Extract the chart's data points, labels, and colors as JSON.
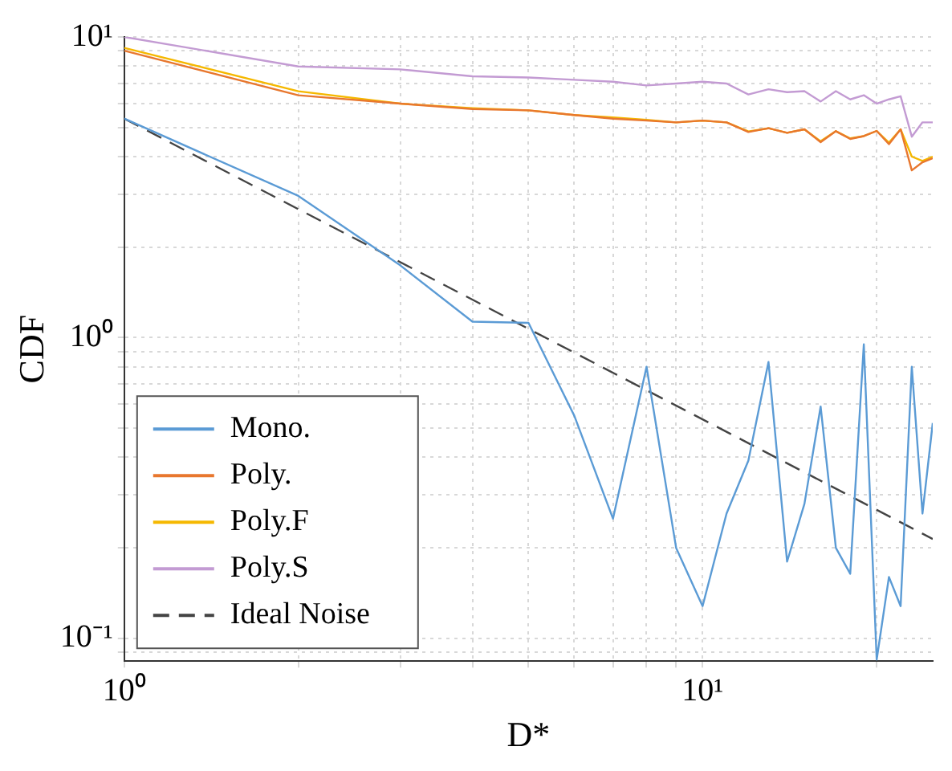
{
  "chart_data": {
    "type": "line",
    "xlabel": "D*",
    "ylabel": "CDF",
    "log": "xy",
    "grid": true,
    "legend": "bottom left",
    "marker": "none",
    "xlim": [
      1,
      25
    ],
    "ylim": [
      0.084,
      10
    ],
    "xticks": [
      {
        "value": 1,
        "label": "10⁰"
      },
      {
        "value": 2,
        "label": null
      },
      {
        "value": 3,
        "label": null
      },
      {
        "value": 4,
        "label": null
      },
      {
        "value": 5,
        "label": null
      },
      {
        "value": 6,
        "label": null
      },
      {
        "value": 7,
        "label": null
      },
      {
        "value": 8,
        "label": null
      },
      {
        "value": 9,
        "label": null
      },
      {
        "value": 10,
        "label": "10¹"
      },
      {
        "value": 20,
        "label": null
      }
    ],
    "yticks": [
      {
        "value": 0.09,
        "label": null
      },
      {
        "value": 0.1,
        "label": "10⁻¹"
      },
      {
        "value": 0.2,
        "label": null
      },
      {
        "value": 0.3,
        "label": null
      },
      {
        "value": 0.4,
        "label": null
      },
      {
        "value": 0.5,
        "label": null
      },
      {
        "value": 0.6,
        "label": null
      },
      {
        "value": 0.7,
        "label": null
      },
      {
        "value": 0.8,
        "label": null
      },
      {
        "value": 0.9,
        "label": null
      },
      {
        "value": 1,
        "label": "10⁰"
      },
      {
        "value": 2,
        "label": null
      },
      {
        "value": 3,
        "label": null
      },
      {
        "value": 4,
        "label": null
      },
      {
        "value": 5,
        "label": null
      },
      {
        "value": 6,
        "label": null
      },
      {
        "value": 7,
        "label": null
      },
      {
        "value": 8,
        "label": null
      },
      {
        "value": 9,
        "label": null
      },
      {
        "value": 10,
        "label": "10¹"
      }
    ],
    "x": [
      1,
      2,
      3,
      4,
      5,
      6,
      7,
      8,
      9,
      10,
      11,
      12,
      13,
      14,
      15,
      16,
      17,
      18,
      19,
      20,
      21,
      22,
      23,
      24,
      25
    ],
    "series": [
      {
        "name": "Mono.",
        "color": "#5b9bd5",
        "values": [
          5.35,
          2.96,
          1.74,
          1.13,
          1.12,
          0.55,
          0.25,
          0.8,
          0.2,
          0.128,
          0.26,
          0.39,
          0.83,
          0.18,
          0.28,
          0.59,
          0.2,
          0.164,
          0.95,
          0.085,
          0.16,
          0.128,
          0.8,
          0.26,
          0.52
        ]
      },
      {
        "name": "Poly.",
        "color": "#e8772e",
        "values": [
          9.0,
          6.4,
          6.0,
          5.76,
          5.7,
          5.5,
          5.35,
          5.27,
          5.2,
          5.27,
          5.2,
          4.83,
          4.97,
          4.8,
          4.93,
          4.47,
          4.86,
          4.58,
          4.68,
          4.87,
          4.4,
          4.93,
          3.6,
          3.83,
          3.95
        ]
      },
      {
        "name": "Poly.F",
        "color": "#f5b800",
        "values": [
          9.2,
          6.6,
          6.0,
          5.8,
          5.7,
          5.5,
          5.4,
          5.3,
          5.2,
          5.27,
          5.2,
          4.85,
          4.97,
          4.8,
          4.93,
          4.5,
          4.86,
          4.6,
          4.68,
          4.87,
          4.45,
          4.93,
          4.0,
          3.87,
          4.0
        ]
      },
      {
        "name": "Poly.S",
        "color": "#c39bd3",
        "values": [
          10.0,
          7.98,
          7.8,
          7.4,
          7.33,
          7.2,
          7.1,
          6.9,
          7.0,
          7.1,
          7.0,
          6.44,
          6.7,
          6.55,
          6.6,
          6.1,
          6.6,
          6.2,
          6.4,
          6.0,
          6.2,
          6.35,
          4.66,
          5.2,
          5.2
        ]
      },
      {
        "name": "Ideal Noise",
        "color": "#444444",
        "line_style": "dashed",
        "x": [
          1,
          25
        ],
        "values": [
          5.35,
          0.214
        ]
      }
    ]
  }
}
